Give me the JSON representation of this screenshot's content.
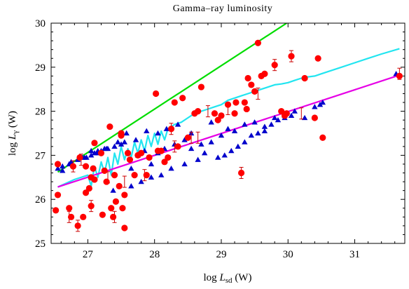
{
  "colors": {
    "pulsar_points": "#ff0000",
    "model_triangles": "#0000cc",
    "green_line": "#00dd00",
    "cyan_line": "#22e5f0",
    "magenta_line": "#e600e6",
    "axes": "#000000"
  },
  "chart_data": {
    "type": "scatter",
    "title": "Gamma–ray luminosity",
    "xlabel": {
      "prefix": "log ",
      "symbol": "L",
      "sub": "sd",
      "suffix": " (W)"
    },
    "ylabel": {
      "prefix": "log ",
      "symbol": "L",
      "sub": "γ",
      "suffix": " (W)"
    },
    "xlim": [
      26.45,
      31.75
    ],
    "ylim": [
      25,
      30
    ],
    "xticks": [
      27,
      28,
      29,
      30,
      31
    ],
    "yticks": [
      25,
      26,
      27,
      28,
      29,
      30
    ],
    "grid": false,
    "legend": "none",
    "series": [
      {
        "marker": "circle",
        "color": "#ff0000",
        "x": [
          26.55,
          26.52,
          26.55,
          26.72,
          26.75,
          26.78,
          26.85,
          26.88,
          26.93,
          26.97,
          26.97,
          27.02,
          27.05,
          27.05,
          27.08,
          27.1,
          27.1,
          27.2,
          27.22,
          27.25,
          27.28,
          27.33,
          27.35,
          27.38,
          27.4,
          27.42,
          27.47,
          27.5,
          27.5,
          27.52,
          27.55,
          27.55,
          27.6,
          27.63,
          27.7,
          27.75,
          27.8,
          27.88,
          27.92,
          28.02,
          28.05,
          28.1,
          28.15,
          28.2,
          28.25,
          28.3,
          28.35,
          28.42,
          28.5,
          28.6,
          28.65,
          28.7,
          28.9,
          28.95,
          29.0,
          29.1,
          29.2,
          29.22,
          29.3,
          29.35,
          29.38,
          29.4,
          29.45,
          29.5,
          29.55,
          29.6,
          29.65,
          29.8,
          29.9,
          29.95,
          29.98,
          30.05,
          30.25,
          30.4,
          30.45,
          30.52,
          31.67
        ],
        "y": [
          26.1,
          25.75,
          26.8,
          25.8,
          25.6,
          26.75,
          25.4,
          26.95,
          25.6,
          26.15,
          26.75,
          26.25,
          26.5,
          25.85,
          26.7,
          26.45,
          27.28,
          27.05,
          25.65,
          26.65,
          26.4,
          27.65,
          25.8,
          25.6,
          26.55,
          25.95,
          26.3,
          27.5,
          27.45,
          25.8,
          26.1,
          25.35,
          27.05,
          26.9,
          26.55,
          27.0,
          27.05,
          26.55,
          26.95,
          28.4,
          27.1,
          27.1,
          26.85,
          26.95,
          27.6,
          28.2,
          27.2,
          28.3,
          27.4,
          27.95,
          28.0,
          28.55,
          27.95,
          27.8,
          27.9,
          28.15,
          27.95,
          28.2,
          26.6,
          28.2,
          28.05,
          28.75,
          28.6,
          28.45,
          29.55,
          28.8,
          28.85,
          29.05,
          28.0,
          27.9,
          27.95,
          29.25,
          28.75,
          27.85,
          29.2,
          27.4,
          28.8
        ],
        "errorbars_x": [
          26.72,
          26.78,
          26.85,
          26.9,
          27.05,
          27.3,
          27.4,
          27.55,
          27.85,
          28.25,
          28.3,
          28.55,
          28.65,
          28.8,
          29.1,
          29.3,
          29.55,
          29.8,
          30.05,
          30.2,
          31.67
        ],
        "errorbars_y": [
          25.6,
          26.75,
          25.4,
          26.9,
          25.85,
          26.5,
          25.6,
          26.4,
          26.55,
          27.6,
          27.2,
          27.4,
          27.4,
          28.0,
          28.05,
          26.6,
          28.4,
          29.05,
          29.25,
          27.95,
          28.85
        ]
      },
      {
        "marker": "triangle",
        "color": "#0000cc",
        "x": [
          26.55,
          26.62,
          26.72,
          26.85,
          26.92,
          26.98,
          27.05,
          27.1,
          27.15,
          27.2,
          27.25,
          27.3,
          27.38,
          27.45,
          27.5,
          27.58,
          27.65,
          27.72,
          27.8,
          27.88,
          27.95,
          28.05,
          28.1,
          28.18,
          28.25,
          28.35,
          28.45,
          28.55,
          28.65,
          28.75,
          28.85,
          28.95,
          29.05,
          29.15,
          29.25,
          29.35,
          29.45,
          29.55,
          29.65,
          29.75,
          29.85,
          29.95,
          30.05,
          30.25,
          30.4,
          30.48,
          30.52,
          31.62,
          26.62,
          26.75,
          26.95,
          27.05,
          27.15,
          27.28,
          27.4,
          27.55,
          27.65,
          27.75,
          27.85,
          27.95,
          28.05,
          28.15,
          28.3,
          28.45,
          28.55,
          28.7,
          28.85,
          29.0,
          29.1,
          29.2,
          29.35,
          29.5,
          29.65,
          29.8,
          29.95,
          30.1
        ],
        "y": [
          26.7,
          26.75,
          26.8,
          26.9,
          26.95,
          26.95,
          27.0,
          27.05,
          27.1,
          27.1,
          27.15,
          27.15,
          26.2,
          27.3,
          27.25,
          27.5,
          26.3,
          27.35,
          26.4,
          27.55,
          26.5,
          27.5,
          26.55,
          27.6,
          26.7,
          27.7,
          26.8,
          27.5,
          26.9,
          27.05,
          27.75,
          26.95,
          27.0,
          27.1,
          27.2,
          27.3,
          27.45,
          27.5,
          27.55,
          27.7,
          27.8,
          27.85,
          27.9,
          27.85,
          28.1,
          28.15,
          28.2,
          28.85,
          26.65,
          26.85,
          26.95,
          27.1,
          27.05,
          27.15,
          27.2,
          27.3,
          26.7,
          27.0,
          27.1,
          26.8,
          27.05,
          27.15,
          27.25,
          27.35,
          27.15,
          27.25,
          27.3,
          27.45,
          27.6,
          27.55,
          27.7,
          27.75,
          27.65,
          27.85,
          27.9,
          28.0
        ]
      },
      {
        "marker": "line",
        "color": "#00dd00",
        "x": [
          26.55,
          29.98
        ],
        "y": [
          26.62,
          30.0
        ]
      },
      {
        "marker": "line",
        "color": "#22e5f0",
        "x": [
          26.55,
          26.8,
          26.9,
          27.0,
          27.05,
          27.1,
          27.15,
          27.2,
          27.25,
          27.3,
          27.35,
          27.4,
          27.45,
          27.5,
          27.55,
          27.6,
          27.65,
          27.7,
          27.75,
          27.8,
          27.85,
          27.9,
          27.95,
          28.0,
          28.05,
          28.1,
          28.15,
          28.2,
          28.3,
          28.4,
          28.5,
          28.6,
          28.7,
          28.8,
          28.9,
          29.0,
          29.1,
          29.2,
          29.3,
          29.4,
          29.5,
          29.6,
          29.7,
          29.8,
          29.9,
          30.0,
          30.1,
          30.2,
          30.3,
          30.4,
          30.5,
          30.6,
          30.8,
          31.0,
          31.2,
          31.4,
          31.67
        ],
        "y": [
          26.28,
          26.45,
          26.5,
          26.55,
          26.3,
          26.75,
          26.5,
          26.85,
          26.6,
          26.95,
          26.55,
          27.05,
          26.8,
          27.2,
          26.9,
          27.15,
          26.95,
          27.3,
          27.05,
          27.35,
          27.1,
          27.45,
          27.2,
          27.5,
          27.25,
          27.55,
          27.35,
          27.6,
          27.7,
          27.75,
          27.85,
          27.95,
          28.0,
          28.05,
          28.1,
          28.15,
          28.25,
          28.3,
          28.35,
          28.4,
          28.45,
          28.5,
          28.55,
          28.6,
          28.62,
          28.65,
          28.7,
          28.75,
          28.78,
          28.8,
          28.85,
          28.9,
          29.0,
          29.1,
          29.2,
          29.3,
          29.42
        ]
      },
      {
        "marker": "line",
        "color": "#e600e6",
        "x": [
          26.55,
          31.67
        ],
        "y": [
          26.28,
          28.82
        ]
      }
    ]
  }
}
